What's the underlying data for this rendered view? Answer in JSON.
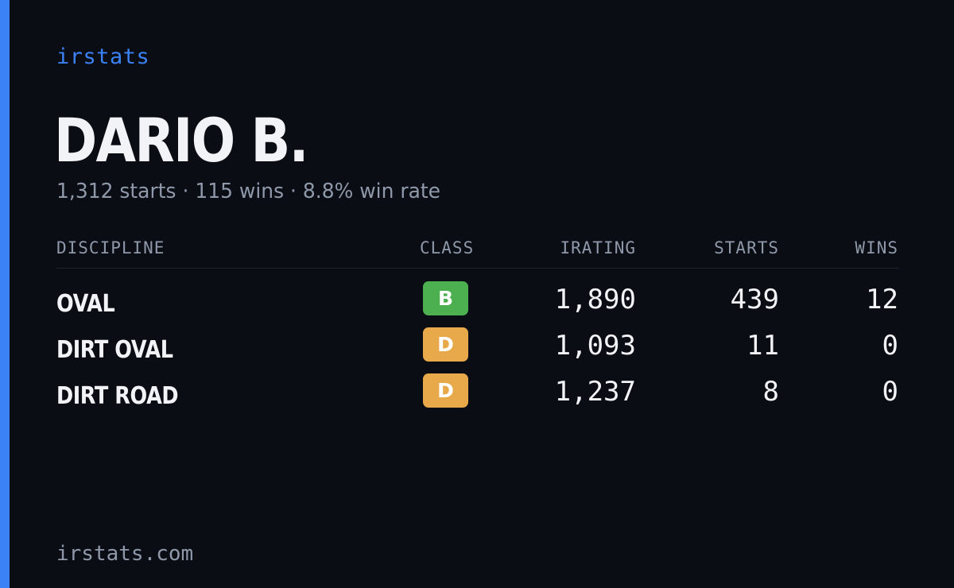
{
  "brand": "irstats",
  "driver": {
    "name": "DARIO B.",
    "summary": "1,312 starts · 115 wins · 8.8% win rate"
  },
  "table": {
    "headers": {
      "discipline": "DISCIPLINE",
      "class": "CLASS",
      "irating": "IRATING",
      "starts": "STARTS",
      "wins": "WINS"
    },
    "rows": [
      {
        "discipline": "OVAL",
        "class": "B",
        "class_color": "#4caf50",
        "irating": "1,890",
        "starts": "439",
        "wins": "12"
      },
      {
        "discipline": "DIRT OVAL",
        "class": "D",
        "class_color": "#e8a94a",
        "irating": "1,093",
        "starts": "11",
        "wins": "0"
      },
      {
        "discipline": "DIRT ROAD",
        "class": "D",
        "class_color": "#e8a94a",
        "irating": "1,237",
        "starts": "8",
        "wins": "0"
      }
    ]
  },
  "footer": "irstats.com",
  "colors": {
    "accent": "#3b82f6",
    "background": "#0a0d14",
    "class_b": "#4caf50",
    "class_d": "#e8a94a"
  }
}
